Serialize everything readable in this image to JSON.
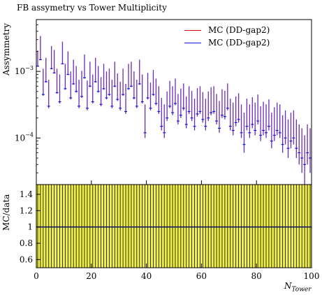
{
  "chart_data": {
    "type": "scatter",
    "title": "FB assymetry vs Tower Multiplicity",
    "xlabel": "N",
    "xlabel_sub": "Tower",
    "ylabel": "Assymmetry",
    "ratio_ylabel": "MC/data",
    "xlim": [
      0,
      100
    ],
    "ylim": [
      2e-05,
      0.006
    ],
    "yscale": "log",
    "ratio_ylim": [
      0.5,
      1.52
    ],
    "x_ticks": [
      "0",
      "20",
      "40",
      "60",
      "80",
      "100"
    ],
    "y_ticks": [
      {
        "value": 0.001,
        "mantissa": "10",
        "exp": "−3"
      },
      {
        "value": 0.0001,
        "mantissa": "10",
        "exp": "−4"
      }
    ],
    "ratio_ticks": [
      "0.6",
      "0.8",
      "1",
      "1.2",
      "1.4"
    ],
    "ratio_tick_values": [
      0.6,
      0.8,
      1.0,
      1.2,
      1.4
    ],
    "legend_position": "top-right",
    "legend": [
      {
        "name": "MC (DD-gap2)",
        "color": "#cc0000"
      },
      {
        "name": "MC (DD-gap2)",
        "color": "#1010dd"
      }
    ],
    "series_color": "#6a2bb8",
    "ratio_band_color": "#f0f04a",
    "bin_centers": [
      0.5,
      1.5,
      2.5,
      3.5,
      4.5,
      5.5,
      6.5,
      7.5,
      8.5,
      9.5,
      10.5,
      11.5,
      12.5,
      13.5,
      14.5,
      15.5,
      16.5,
      17.5,
      18.5,
      19.5,
      20.5,
      21.5,
      22.5,
      23.5,
      24.5,
      25.5,
      26.5,
      27.5,
      28.5,
      29.5,
      30.5,
      31.5,
      32.5,
      33.5,
      34.5,
      35.5,
      36.5,
      37.5,
      38.5,
      39.5,
      40.5,
      41.5,
      42.5,
      43.5,
      44.5,
      45.5,
      46.5,
      47.5,
      48.5,
      49.5,
      50.5,
      51.5,
      52.5,
      53.5,
      54.5,
      55.5,
      56.5,
      57.5,
      58.5,
      59.5,
      60.5,
      61.5,
      62.5,
      63.5,
      64.5,
      65.5,
      66.5,
      67.5,
      68.5,
      69.5,
      70.5,
      71.5,
      72.5,
      73.5,
      74.5,
      75.5,
      76.5,
      77.5,
      78.5,
      79.5,
      80.5,
      81.5,
      82.5,
      83.5,
      84.5,
      85.5,
      86.5,
      87.5,
      88.5,
      89.5,
      90.5,
      91.5,
      92.5,
      93.5,
      94.5,
      95.5,
      96.5,
      97.5,
      98.5,
      99.5
    ],
    "values": [
      0.0012,
      0.0015,
      0.00045,
      0.0007,
      0.0003,
      0.0011,
      0.00095,
      0.00048,
      0.00035,
      0.0013,
      0.00055,
      0.0009,
      0.0004,
      0.00065,
      0.0005,
      0.0003,
      0.00042,
      0.0008,
      0.00028,
      0.0006,
      0.00035,
      0.0007,
      0.0005,
      0.00032,
      0.00055,
      0.0004,
      0.00045,
      0.0003,
      0.0006,
      0.00038,
      0.00028,
      0.00045,
      0.00025,
      0.00055,
      0.0006,
      0.0004,
      0.0003,
      0.00065,
      0.00035,
      0.00012,
      0.0004,
      0.00028,
      0.00045,
      0.00033,
      0.00025,
      0.00015,
      0.00012,
      0.0002,
      0.0003,
      0.00024,
      0.00033,
      0.00018,
      0.00022,
      0.00028,
      0.00016,
      0.00025,
      0.0002,
      0.00015,
      0.00023,
      0.00025,
      0.00019,
      0.00015,
      0.0002,
      0.00024,
      0.00025,
      0.00018,
      0.00014,
      0.00022,
      0.00021,
      0.00028,
      0.00015,
      0.00013,
      0.00017,
      0.00019,
      0.00012,
      8e-05,
      0.00015,
      0.00012,
      0.00016,
      0.00013,
      0.00018,
      0.00011,
      0.00013,
      0.00012,
      0.00015,
      9e-05,
      0.00011,
      0.00013,
      0.00012,
      8e-05,
      0.0001,
      7e-05,
      9e-05,
      0.0001,
      7e-05,
      6e-05,
      5e-05,
      4e-05,
      6e-05,
      5e-05
    ],
    "err_hi": [
      0.00085,
      0.0019,
      0.00065,
      0.0009,
      0.00045,
      0.0013,
      0.00115,
      0.00062,
      0.00055,
      0.0015,
      0.00075,
      0.0011,
      0.0006,
      0.00085,
      0.0007,
      0.00045,
      0.0006,
      0.001,
      0.00045,
      0.0008,
      0.00055,
      0.0009,
      0.0007,
      0.0005,
      0.00075,
      0.0006,
      0.00065,
      0.00045,
      0.0008,
      0.00055,
      0.00042,
      0.00065,
      0.0004,
      0.00075,
      0.0008,
      0.0006,
      0.00045,
      0.00085,
      0.00055,
      0.0002,
      0.00055,
      0.0004,
      0.0006,
      0.00045,
      0.00035,
      0.00025,
      0.0002,
      0.0003,
      0.00042,
      0.00036,
      0.00045,
      0.00028,
      0.00033,
      0.00038,
      0.00026,
      0.00035,
      0.00031,
      0.00024,
      0.00033,
      0.00035,
      0.0003,
      0.00024,
      0.0003,
      0.00034,
      0.00035,
      0.00028,
      0.00022,
      0.00032,
      0.0003,
      0.00038,
      0.00024,
      0.00021,
      0.00025,
      0.00028,
      0.0002,
      0.00016,
      0.00024,
      0.0002,
      0.00025,
      0.00021,
      0.00027,
      0.00019,
      0.00022,
      0.0002,
      0.00023,
      0.00015,
      0.00018,
      0.00021,
      0.0002,
      0.00014,
      0.00016,
      0.00012,
      0.00015,
      0.00016,
      0.00012,
      0.0001,
      9e-05,
      7e-05,
      0.0001,
      9e-05
    ],
    "err_lo": [
      2e-05,
      2e-05,
      2e-05,
      2e-05,
      2e-05,
      2e-05,
      2e-05,
      2e-05,
      2e-05,
      2e-05,
      2e-05,
      2e-05,
      2e-05,
      2e-05,
      2e-05,
      2e-05,
      2e-05,
      2e-05,
      2e-05,
      2e-05,
      2e-05,
      2e-05,
      2e-05,
      2e-05,
      2e-05,
      2e-05,
      2e-05,
      2e-05,
      2e-05,
      2e-05,
      2e-05,
      2e-05,
      2e-05,
      2e-05,
      2e-05,
      2e-05,
      2e-05,
      2e-05,
      2e-05,
      2e-05,
      2e-05,
      2e-05,
      2e-05,
      2e-05,
      2e-05,
      2e-05,
      2e-05,
      2e-05,
      2e-05,
      2e-05,
      2e-05,
      2e-05,
      2e-05,
      2e-05,
      2e-05,
      2e-05,
      2e-05,
      2e-05,
      2e-05,
      2e-05,
      2e-05,
      2e-05,
      2e-05,
      2e-05,
      2e-05,
      2e-05,
      2e-05,
      2e-05,
      2e-05,
      2e-05,
      2e-05,
      2e-05,
      2e-05,
      2e-05,
      2e-05,
      2e-05,
      2e-05,
      2e-05,
      2e-05,
      2e-05,
      2e-05,
      2e-05,
      2e-05,
      2e-05,
      2e-05,
      2e-05,
      2e-05,
      2e-05,
      2e-05,
      2e-05,
      2e-05,
      2e-05,
      2e-05,
      2e-05,
      2e-05,
      2e-05,
      2e-05,
      2e-05,
      2e-05,
      2e-05
    ],
    "ratio_values": [
      1,
      1,
      1,
      1,
      1,
      1,
      1,
      1,
      1,
      1,
      1,
      1,
      1,
      1,
      1,
      1,
      1,
      1,
      1,
      1,
      1,
      1,
      1,
      1,
      1,
      1,
      1,
      1,
      1,
      1,
      1,
      1,
      1,
      1,
      1,
      1,
      1,
      1,
      1,
      1,
      1,
      1,
      1,
      1,
      1,
      1,
      1,
      1,
      1,
      1,
      1,
      1,
      1,
      1,
      1,
      1,
      1,
      1,
      1,
      1,
      1,
      1,
      1,
      1,
      1,
      1,
      1,
      1,
      1,
      1,
      1,
      1,
      1,
      1,
      1,
      1,
      1,
      1,
      1,
      1,
      1,
      1,
      1,
      1,
      1,
      1,
      1,
      1,
      1,
      1,
      1,
      1,
      1,
      1,
      1,
      1,
      1,
      1,
      1,
      1
    ]
  }
}
